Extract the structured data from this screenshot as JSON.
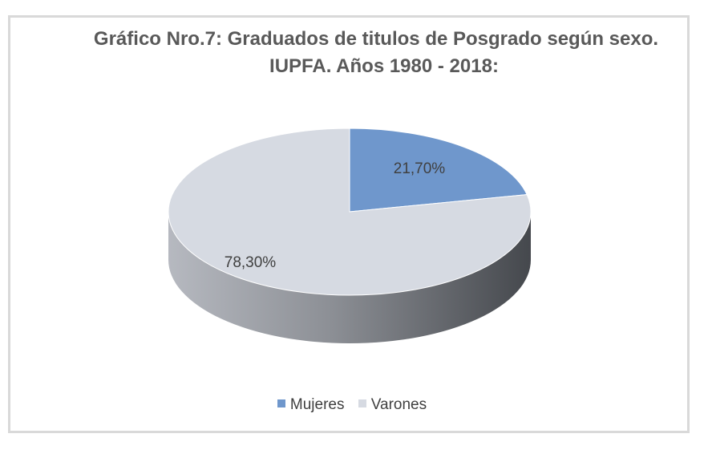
{
  "title_line1": "Gráfico Nro.7: Graduados de titulos de Posgrado según sexo.",
  "title_line2": "IUPFA. Años 1980 - 2018:",
  "chart_data": {
    "type": "pie",
    "title": "Gráfico Nro.7: Graduados de titulos de Posgrado según sexo. IUPFA. Años 1980 - 2018:",
    "categories": [
      "Mujeres",
      "Varones"
    ],
    "values": [
      21.7,
      78.3
    ],
    "data_labels": [
      "21,70%",
      "78,30%"
    ],
    "colors": [
      "#6f97cc",
      "#d6dae2"
    ],
    "legend_position": "bottom",
    "style": "3d"
  },
  "legend": {
    "items": [
      {
        "label": "Mujeres",
        "color": "#6f97cc"
      },
      {
        "label": "Varones",
        "color": "#d6dae2"
      }
    ]
  }
}
